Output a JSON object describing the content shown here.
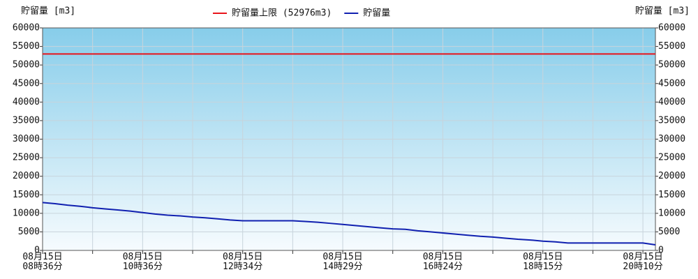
{
  "chart_data": {
    "type": "line",
    "y_label": "貯留量 [m3]",
    "y2_label": "貯留量 [m3]",
    "categories": [
      "08月15日\n08時36分",
      null,
      null,
      null,
      null,
      null,
      null,
      null,
      "08月15日\n10時36分",
      null,
      null,
      null,
      null,
      null,
      null,
      null,
      "08月15日\n12時34分",
      null,
      null,
      null,
      null,
      null,
      null,
      null,
      "08月15日\n14時29分",
      null,
      null,
      null,
      null,
      null,
      null,
      null,
      "08月15日\n16時24分",
      null,
      null,
      null,
      null,
      null,
      null,
      null,
      "08月15日\n18時15分",
      null,
      null,
      null,
      null,
      null,
      null,
      null,
      "08月15日\n20時10分",
      null
    ],
    "series": [
      {
        "name": "貯留量上限 (52976m3)",
        "color": "#e8141b",
        "values": [
          52976,
          52976,
          52976,
          52976,
          52976,
          52976,
          52976,
          52976,
          52976,
          52976,
          52976,
          52976,
          52976,
          52976,
          52976,
          52976,
          52976,
          52976,
          52976,
          52976,
          52976,
          52976,
          52976,
          52976,
          52976,
          52976,
          52976,
          52976,
          52976,
          52976,
          52976,
          52976,
          52976,
          52976,
          52976,
          52976,
          52976,
          52976,
          52976,
          52976,
          52976,
          52976,
          52976,
          52976,
          52976,
          52976,
          52976,
          52976,
          52976,
          52976
        ]
      },
      {
        "name": "貯留量",
        "color": "#1020b0",
        "values": [
          12900,
          12600,
          12200,
          11900,
          11500,
          11200,
          10900,
          10600,
          10200,
          9800,
          9500,
          9300,
          9000,
          8800,
          8500,
          8200,
          8000,
          8000,
          8000,
          8000,
          8000,
          7800,
          7600,
          7300,
          7000,
          6700,
          6400,
          6100,
          5800,
          5700,
          5300,
          5000,
          4700,
          4400,
          4100,
          3800,
          3600,
          3300,
          3000,
          2800,
          2500,
          2300,
          2000,
          2000,
          2000,
          2000,
          2000,
          2000,
          2000,
          1500
        ]
      }
    ],
    "ylim": [
      0,
      60000
    ],
    "yticks": [
      0,
      5000,
      10000,
      15000,
      20000,
      25000,
      30000,
      35000,
      40000,
      45000,
      50000,
      55000,
      60000
    ],
    "y2lim": [
      0,
      60000
    ],
    "y2ticks": [
      0,
      5000,
      10000,
      15000,
      20000,
      25000,
      30000,
      35000,
      40000,
      45000,
      50000,
      55000,
      60000
    ],
    "grid": true
  }
}
